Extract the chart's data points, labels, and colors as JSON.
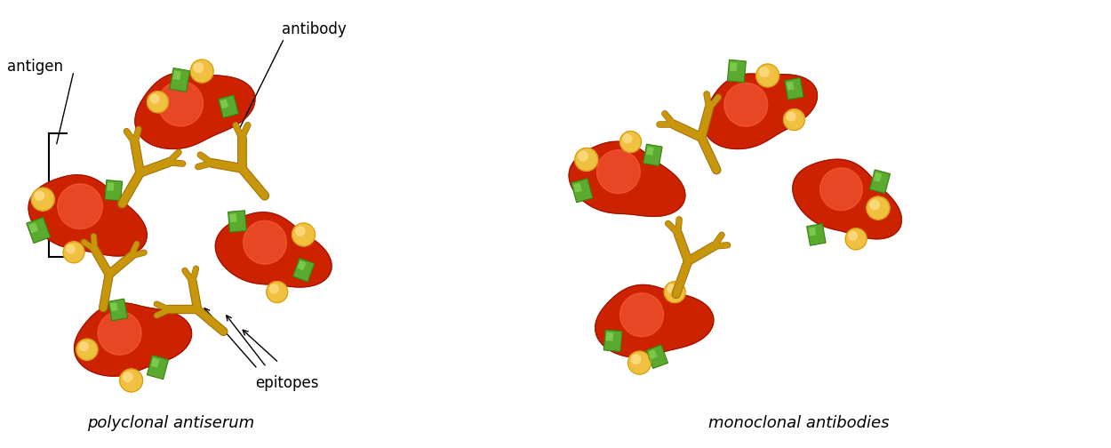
{
  "title": "",
  "background_color": "#ffffff",
  "antigen_color": "#cc2200",
  "antigen_highlight": "#ff6644",
  "epitope_sphere_color": "#f0c040",
  "epitope_sphere_edge": "#d4a010",
  "epitope_rect_color": "#5aaa30",
  "epitope_rect_edge": "#3a8010",
  "antibody_color": "#c8960a",
  "antibody_edge": "#a07008",
  "text_color": "#000000",
  "label_antiserum": "polyclonal antiserum",
  "label_monoclonal": "monoclonal antibodies",
  "label_antigen": "antigen",
  "label_antibody": "antibody",
  "label_epitopes": "epitopes",
  "figsize": [
    12.5,
    5.04
  ],
  "dpi": 100
}
